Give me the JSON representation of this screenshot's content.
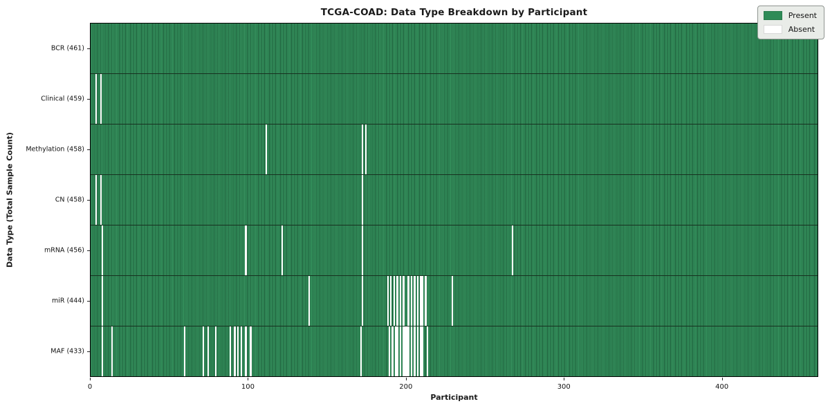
{
  "title": "TCGA-COAD: Data Type Breakdown by Participant",
  "colors": {
    "present": "#2e8b57",
    "absent": "#ffffff",
    "cell_edge": "#17301f",
    "plot_border": "#000000",
    "legend_bg": "#e9ece8",
    "legend_border": "#8f9590"
  },
  "chart_data": {
    "type": "heatmap",
    "title": "TCGA-COAD: Data Type Breakdown by Participant",
    "xlabel": "Participant",
    "ylabel": "Data Type (Total Sample Count)",
    "legend": {
      "present": "Present",
      "absent": "Absent"
    },
    "legend_position": "upper right",
    "grid": false,
    "total_participants": 461,
    "xlim": [
      0,
      461
    ],
    "x_ticks": [
      0,
      100,
      200,
      300,
      400
    ],
    "rows": [
      {
        "data_type": "BCR",
        "label": "BCR (461)",
        "count": 461,
        "absent_participants": []
      },
      {
        "data_type": "Clinical",
        "label": "Clinical (459)",
        "count": 459,
        "absent_participants": [
          3,
          6
        ]
      },
      {
        "data_type": "Methylation",
        "label": "Methylation (458)",
        "count": 458,
        "absent_participants": [
          111,
          172,
          174
        ]
      },
      {
        "data_type": "CN",
        "label": "CN (458)",
        "count": 458,
        "absent_participants": [
          3,
          6,
          172
        ]
      },
      {
        "data_type": "mRNA",
        "label": "mRNA (456)",
        "count": 456,
        "absent_participants": [
          7,
          98,
          121,
          172,
          267
        ]
      },
      {
        "data_type": "miR",
        "label": "miR (444)",
        "count": 444,
        "absent_participants": [
          7,
          138,
          172,
          188,
          190,
          192,
          194,
          196,
          198,
          201,
          203,
          205,
          207,
          209,
          210,
          212,
          229
        ]
      },
      {
        "data_type": "MAF",
        "label": "MAF (433)",
        "count": 433,
        "absent_participants": [
          7,
          13,
          59,
          71,
          74,
          79,
          88,
          91,
          93,
          95,
          98,
          101,
          171,
          189,
          191,
          193,
          194,
          196,
          198,
          199,
          200,
          201,
          203,
          205,
          207,
          209,
          210,
          213
        ]
      }
    ]
  }
}
